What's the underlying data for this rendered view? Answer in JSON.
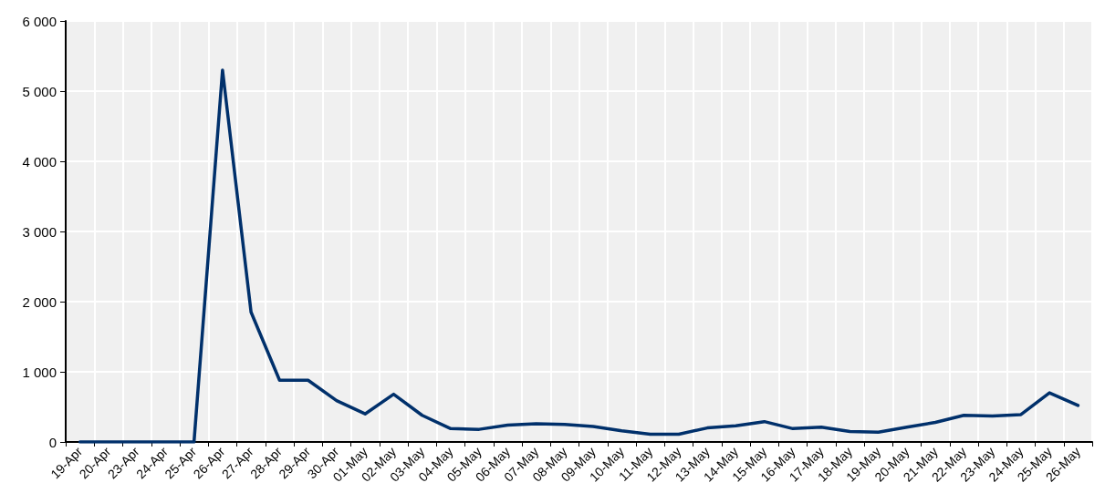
{
  "chart_data": {
    "type": "line",
    "categories": [
      "19-Apr",
      "20-Apr",
      "23-Apr",
      "24-Apr",
      "25-Apr",
      "26-Apr",
      "27-Apr",
      "28-Apr",
      "29-Apr",
      "30-Apr",
      "01-May",
      "02-May",
      "03-May",
      "04-May",
      "05-May",
      "06-May",
      "07-May",
      "08-May",
      "09-May",
      "10-May",
      "11-May",
      "12-May",
      "13-May",
      "14-May",
      "15-May",
      "16-May",
      "17-May",
      "18-May",
      "19-May",
      "20-May",
      "21-May",
      "22-May",
      "23-May",
      "24-May",
      "25-May",
      "26-May"
    ],
    "series": [
      {
        "color": "#00306b",
        "values": [
          0,
          0,
          0,
          0,
          0,
          5300,
          1850,
          880,
          880,
          590,
          400,
          680,
          380,
          190,
          180,
          240,
          260,
          250,
          220,
          160,
          110,
          110,
          200,
          230,
          290,
          190,
          210,
          150,
          140,
          210,
          280,
          380,
          370,
          390,
          700,
          520
        ]
      }
    ],
    "ylim": [
      0,
      6000
    ],
    "yticks": [
      0,
      {
        "value": 1000,
        "label": "1 000"
      },
      {
        "value": 2000,
        "label": "2 000"
      },
      {
        "value": 3000,
        "label": "3 000"
      },
      {
        "value": 4000,
        "label": "4 000"
      },
      {
        "value": 5000,
        "label": "5 000"
      },
      {
        "value": 6000,
        "label": "6 000"
      }
    ],
    "grid": true,
    "marker": "none",
    "line_style": "solid"
  }
}
